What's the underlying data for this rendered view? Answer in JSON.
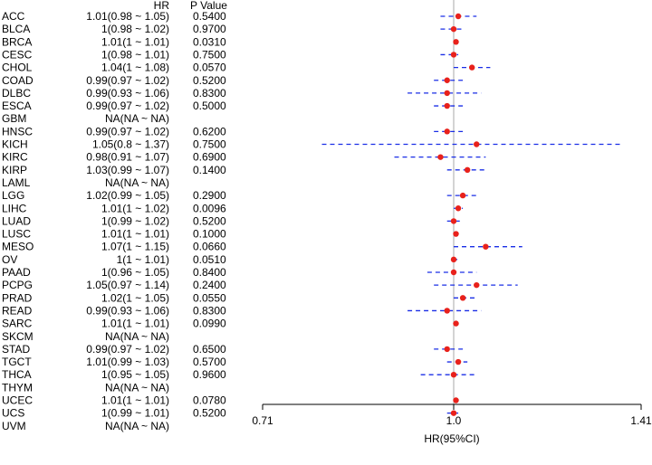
{
  "chart_data": {
    "type": "forest",
    "headers": {
      "hr": "HR",
      "p": "P Value"
    },
    "xlabel": "HR(95%CI)",
    "xticks": [
      {
        "value": 0.71,
        "label": "0.71"
      },
      {
        "value": 1.0,
        "label": "1.0"
      },
      {
        "value": 1.41,
        "label": "1.41"
      }
    ],
    "reference_line": 1.0,
    "colors": {
      "point": "#e8211b",
      "ci": "#1a2ee6",
      "reference": "#a8aaa8",
      "axis": "#000000"
    },
    "rows": [
      {
        "name": "ACC",
        "hr_text": "1.01(0.98 ~ 1.05)",
        "p": "0.5400",
        "hr": 1.01,
        "lo": 0.98,
        "hi": 1.05
      },
      {
        "name": "BLCA",
        "hr_text": "1(0.98 ~ 1.02)",
        "p": "0.9700",
        "hr": 1.0,
        "lo": 0.98,
        "hi": 1.02
      },
      {
        "name": "BRCA",
        "hr_text": "1.01(1 ~ 1.01)",
        "p": "0.0310",
        "hr": 1.005,
        "lo": 1.0,
        "hi": 1.008
      },
      {
        "name": "CESC",
        "hr_text": "1(0.98 ~ 1.01)",
        "p": "0.7500",
        "hr": 1.0,
        "lo": 0.98,
        "hi": 1.01
      },
      {
        "name": "CHOL",
        "hr_text": "1.04(1 ~ 1.08)",
        "p": "0.0570",
        "hr": 1.04,
        "lo": 1.0,
        "hi": 1.08
      },
      {
        "name": "COAD",
        "hr_text": "0.99(0.97 ~ 1.02)",
        "p": "0.5200",
        "hr": 0.99,
        "lo": 0.97,
        "hi": 1.02
      },
      {
        "name": "DLBC",
        "hr_text": "0.99(0.93 ~ 1.06)",
        "p": "0.8300",
        "hr": 0.99,
        "lo": 0.93,
        "hi": 1.06
      },
      {
        "name": "ESCA",
        "hr_text": "0.99(0.97 ~ 1.02)",
        "p": "0.5000",
        "hr": 0.99,
        "lo": 0.97,
        "hi": 1.02
      },
      {
        "name": "GBM",
        "hr_text": "NA(NA ~ NA)",
        "p": "",
        "hr": null,
        "lo": null,
        "hi": null
      },
      {
        "name": "HNSC",
        "hr_text": "0.99(0.97 ~ 1.02)",
        "p": "0.6200",
        "hr": 0.99,
        "lo": 0.97,
        "hi": 1.02
      },
      {
        "name": "KICH",
        "hr_text": "1.05(0.8 ~ 1.37)",
        "p": "0.7500",
        "hr": 1.05,
        "lo": 0.8,
        "hi": 1.37
      },
      {
        "name": "KIRC",
        "hr_text": "0.98(0.91 ~ 1.07)",
        "p": "0.6900",
        "hr": 0.98,
        "lo": 0.91,
        "hi": 1.07
      },
      {
        "name": "KIRP",
        "hr_text": "1.03(0.99 ~ 1.07)",
        "p": "0.1400",
        "hr": 1.03,
        "lo": 0.99,
        "hi": 1.07
      },
      {
        "name": "LAML",
        "hr_text": "NA(NA ~ NA)",
        "p": "",
        "hr": null,
        "lo": null,
        "hi": null
      },
      {
        "name": "LGG",
        "hr_text": "1.02(0.99 ~ 1.05)",
        "p": "0.2900",
        "hr": 1.02,
        "lo": 0.99,
        "hi": 1.05
      },
      {
        "name": "LIHC",
        "hr_text": "1.01(1 ~ 1.02)",
        "p": "0.0096",
        "hr": 1.01,
        "lo": 1.0,
        "hi": 1.02
      },
      {
        "name": "LUAD",
        "hr_text": "1(0.99 ~ 1.02)",
        "p": "0.5200",
        "hr": 1.0,
        "lo": 0.99,
        "hi": 1.02
      },
      {
        "name": "LUSC",
        "hr_text": "1.01(1 ~ 1.01)",
        "p": "0.1000",
        "hr": 1.005,
        "lo": 1.0,
        "hi": 1.008
      },
      {
        "name": "MESO",
        "hr_text": "1.07(1 ~ 1.15)",
        "p": "0.0660",
        "hr": 1.07,
        "lo": 1.0,
        "hi": 1.15
      },
      {
        "name": "OV",
        "hr_text": "1(1 ~ 1.01)",
        "p": "0.0510",
        "hr": 1.0,
        "lo": 1.0,
        "hi": 1.008
      },
      {
        "name": "PAAD",
        "hr_text": "1(0.96 ~ 1.05)",
        "p": "0.8400",
        "hr": 1.0,
        "lo": 0.96,
        "hi": 1.05
      },
      {
        "name": "PCPG",
        "hr_text": "1.05(0.97 ~ 1.14)",
        "p": "0.2400",
        "hr": 1.05,
        "lo": 0.97,
        "hi": 1.14
      },
      {
        "name": "PRAD",
        "hr_text": "1.02(1 ~ 1.05)",
        "p": "0.0550",
        "hr": 1.02,
        "lo": 1.0,
        "hi": 1.05
      },
      {
        "name": "READ",
        "hr_text": "0.99(0.93 ~ 1.06)",
        "p": "0.8300",
        "hr": 0.99,
        "lo": 0.93,
        "hi": 1.06
      },
      {
        "name": "SARC",
        "hr_text": "1.01(1 ~ 1.01)",
        "p": "0.0990",
        "hr": 1.005,
        "lo": 1.0,
        "hi": 1.008
      },
      {
        "name": "SKCM",
        "hr_text": "NA(NA ~ NA)",
        "p": "",
        "hr": null,
        "lo": null,
        "hi": null
      },
      {
        "name": "STAD",
        "hr_text": "0.99(0.97 ~ 1.02)",
        "p": "0.6500",
        "hr": 0.99,
        "lo": 0.97,
        "hi": 1.02
      },
      {
        "name": "TGCT",
        "hr_text": "1.01(0.99 ~ 1.03)",
        "p": "0.5700",
        "hr": 1.01,
        "lo": 0.99,
        "hi": 1.03
      },
      {
        "name": "THCA",
        "hr_text": "1(0.95 ~ 1.05)",
        "p": "0.9600",
        "hr": 1.0,
        "lo": 0.95,
        "hi": 1.05
      },
      {
        "name": "THYM",
        "hr_text": "NA(NA ~ NA)",
        "p": "",
        "hr": null,
        "lo": null,
        "hi": null
      },
      {
        "name": "UCEC",
        "hr_text": "1.01(1 ~ 1.01)",
        "p": "0.0780",
        "hr": 1.005,
        "lo": 1.0,
        "hi": 1.008
      },
      {
        "name": "UCS",
        "hr_text": "1(0.99 ~ 1.01)",
        "p": "0.5200",
        "hr": 1.0,
        "lo": 0.99,
        "hi": 1.01
      },
      {
        "name": "UVM",
        "hr_text": "NA(NA ~ NA)",
        "p": "",
        "hr": null,
        "lo": null,
        "hi": null
      }
    ]
  }
}
